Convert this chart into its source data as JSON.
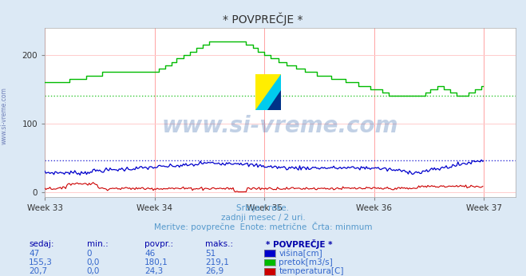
{
  "title": "* POVPREČJE *",
  "background_color": "#dce9f5",
  "plot_bg_color": "#ffffff",
  "grid_color_h": "#ffcccc",
  "grid_color_v": "#ff9999",
  "subtitle_lines": [
    "Srbija / reke.",
    "zadnji mesec / 2 uri.",
    "Meritve: povprečne  Enote: metrične  Črta: minmum"
  ],
  "subtitle_color": "#5599cc",
  "xlabel_weeks": [
    "Week 33",
    "Week 34",
    "Week 35",
    "Week 36",
    "Week 37"
  ],
  "ylabel_ticks": [
    0,
    100,
    200
  ],
  "ylim": [
    -8,
    240
  ],
  "xlim": [
    0,
    360
  ],
  "week_positions": [
    0,
    84,
    168,
    252,
    336
  ],
  "watermark": "www.si-vreme.com",
  "watermark_color": "#3366aa",
  "watermark_alpha": 0.3,
  "side_label": "www.si-vreme.com",
  "legend_items": [
    {
      "label": "višina[cm]",
      "color": "#0000cc"
    },
    {
      "label": "pretok[m3/s]",
      "color": "#00bb00"
    },
    {
      "label": "temperatura[C]",
      "color": "#cc0000"
    }
  ],
  "table_headers": [
    "sedaj:",
    "min.:",
    "povpr.:",
    "maks.:",
    "* POVPREČJE *"
  ],
  "table_data": [
    [
      "47",
      "0",
      "46",
      "51"
    ],
    [
      "155,3",
      "0,0",
      "180,1",
      "219,1"
    ],
    [
      "20,7",
      "0,0",
      "24,3",
      "26,9"
    ]
  ],
  "hline_blue_y": 46,
  "hline_green_y": 140,
  "hline_blue_color": "#0000cc",
  "hline_green_color": "#00bb00",
  "vline_color": "#ff6666",
  "vline_alpha": 0.6,
  "n_points": 336
}
